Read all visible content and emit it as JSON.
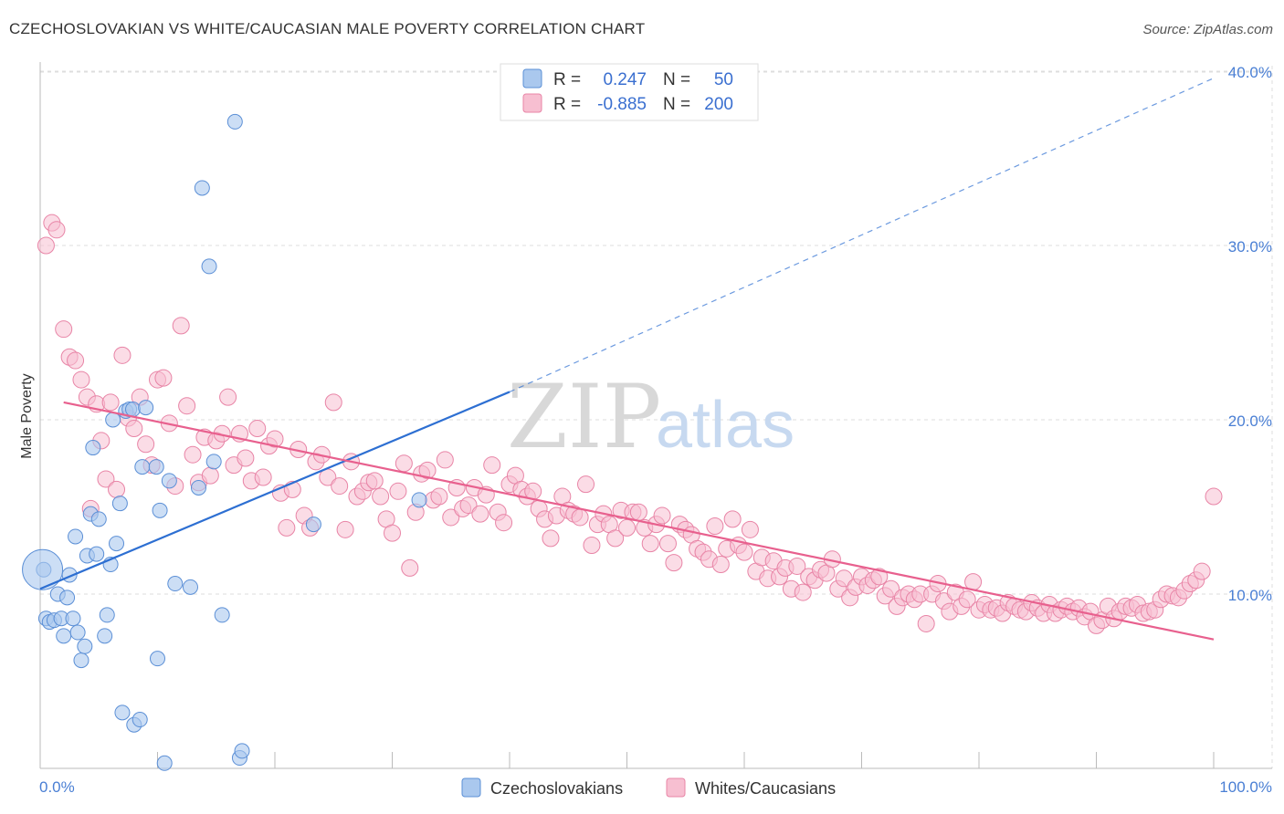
{
  "title": "CZECHOSLOVAKIAN VS WHITE/CAUCASIAN MALE POVERTY CORRELATION CHART",
  "source": "Source: ZipAtlas.com",
  "watermark": {
    "zip": "ZIP",
    "atlas": "atlas"
  },
  "colors": {
    "blue_fill": "#aac8ee",
    "blue_stroke": "#5b8fd6",
    "blue_line": "#2d6fd2",
    "pink_fill": "#f7bfd1",
    "pink_stroke": "#e884a6",
    "pink_line": "#e8608e",
    "grid": "#dddddd",
    "tick_text": "#4a7fd4"
  },
  "legend": {
    "rows": [
      {
        "r_label": "R =",
        "r_value": "0.247",
        "n_label": "N =",
        "n_value": "50"
      },
      {
        "r_label": "R =",
        "r_value": "-0.885",
        "n_label": "N =",
        "n_value": "200"
      }
    ]
  },
  "chart_data": {
    "type": "scatter",
    "xlabel": "",
    "ylabel": "Male Poverty",
    "xlim": [
      0,
      100
    ],
    "ylim": [
      0,
      40
    ],
    "x_ticks": [
      "0.0%",
      "100.0%"
    ],
    "y_ticks": [
      "10.0%",
      "20.0%",
      "30.0%",
      "40.0%"
    ],
    "y_tick_values": [
      10,
      20,
      30,
      40
    ],
    "grid": true,
    "series": [
      {
        "name": "Czechoslovakians",
        "color": "#aac8ee",
        "trend": {
          "x0": 0,
          "y0": 10.3,
          "x1": 40,
          "y1": 21.6,
          "extend_x": 100,
          "extend_y": 39.6
        },
        "points": [
          [
            0.3,
            11.4
          ],
          [
            0.5,
            8.6
          ],
          [
            0.8,
            8.4
          ],
          [
            1.2,
            8.5
          ],
          [
            1.5,
            10.0
          ],
          [
            1.8,
            8.6
          ],
          [
            2.0,
            7.6
          ],
          [
            2.3,
            9.8
          ],
          [
            2.5,
            11.1
          ],
          [
            2.8,
            8.6
          ],
          [
            3.0,
            13.3
          ],
          [
            3.2,
            7.8
          ],
          [
            3.5,
            6.2
          ],
          [
            3.8,
            7.0
          ],
          [
            4.0,
            12.2
          ],
          [
            4.3,
            14.6
          ],
          [
            4.5,
            18.4
          ],
          [
            4.8,
            12.3
          ],
          [
            5.0,
            14.3
          ],
          [
            5.5,
            7.6
          ],
          [
            5.7,
            8.8
          ],
          [
            6.0,
            11.7
          ],
          [
            6.2,
            20.0
          ],
          [
            6.5,
            12.9
          ],
          [
            6.8,
            15.2
          ],
          [
            7.0,
            3.2
          ],
          [
            7.3,
            20.5
          ],
          [
            7.6,
            20.6
          ],
          [
            7.9,
            20.6
          ],
          [
            8.0,
            2.5
          ],
          [
            8.5,
            2.8
          ],
          [
            8.7,
            17.3
          ],
          [
            9.0,
            20.7
          ],
          [
            9.9,
            17.3
          ],
          [
            10.0,
            6.3
          ],
          [
            10.2,
            14.8
          ],
          [
            10.6,
            0.3
          ],
          [
            11.0,
            16.5
          ],
          [
            11.5,
            10.6
          ],
          [
            12.8,
            10.4
          ],
          [
            13.5,
            16.1
          ],
          [
            13.8,
            33.3
          ],
          [
            14.4,
            28.8
          ],
          [
            14.8,
            17.6
          ],
          [
            15.5,
            8.8
          ],
          [
            16.6,
            37.1
          ],
          [
            17.0,
            0.6
          ],
          [
            17.2,
            1.0
          ],
          [
            23.3,
            14.0
          ],
          [
            32.3,
            15.4
          ]
        ],
        "big_point": [
          0.2,
          11.4
        ]
      },
      {
        "name": "Whites/Caucasians",
        "color": "#f7bfd1",
        "trend": {
          "x0": 2,
          "y0": 21.0,
          "x1": 100,
          "y1": 7.4
        },
        "points": [
          [
            0.5,
            30.0
          ],
          [
            1.0,
            31.3
          ],
          [
            1.4,
            30.9
          ],
          [
            2.0,
            25.2
          ],
          [
            2.5,
            23.6
          ],
          [
            3.0,
            23.4
          ],
          [
            3.5,
            22.3
          ],
          [
            4.0,
            21.3
          ],
          [
            4.3,
            14.9
          ],
          [
            4.8,
            20.9
          ],
          [
            5.2,
            18.8
          ],
          [
            5.6,
            16.6
          ],
          [
            6.0,
            21.0
          ],
          [
            6.5,
            16.0
          ],
          [
            7.0,
            23.7
          ],
          [
            7.5,
            20.1
          ],
          [
            8.0,
            19.5
          ],
          [
            8.5,
            21.3
          ],
          [
            9.0,
            18.6
          ],
          [
            9.5,
            17.4
          ],
          [
            10.0,
            22.3
          ],
          [
            10.5,
            22.4
          ],
          [
            11.0,
            19.8
          ],
          [
            11.5,
            16.2
          ],
          [
            12.0,
            25.4
          ],
          [
            12.5,
            20.8
          ],
          [
            13.0,
            18.0
          ],
          [
            13.5,
            16.4
          ],
          [
            14.0,
            19.0
          ],
          [
            14.5,
            16.8
          ],
          [
            15.0,
            18.8
          ],
          [
            15.5,
            19.2
          ],
          [
            16.0,
            21.3
          ],
          [
            16.5,
            17.4
          ],
          [
            17.0,
            19.2
          ],
          [
            17.5,
            17.8
          ],
          [
            18.0,
            16.5
          ],
          [
            18.5,
            19.5
          ],
          [
            19.0,
            16.7
          ],
          [
            19.5,
            18.5
          ],
          [
            20.0,
            18.9
          ],
          [
            20.5,
            15.8
          ],
          [
            21.0,
            13.8
          ],
          [
            21.5,
            16.0
          ],
          [
            22.0,
            18.3
          ],
          [
            22.5,
            14.5
          ],
          [
            23.0,
            13.8
          ],
          [
            23.5,
            17.6
          ],
          [
            24.0,
            18.0
          ],
          [
            24.5,
            16.7
          ],
          [
            25.0,
            21.0
          ],
          [
            25.5,
            16.2
          ],
          [
            26.0,
            13.7
          ],
          [
            26.5,
            17.6
          ],
          [
            27.0,
            15.6
          ],
          [
            27.5,
            15.9
          ],
          [
            28.0,
            16.4
          ],
          [
            28.5,
            16.5
          ],
          [
            29.0,
            15.6
          ],
          [
            29.5,
            14.3
          ],
          [
            30.0,
            13.5
          ],
          [
            30.5,
            15.9
          ],
          [
            31.0,
            17.5
          ],
          [
            31.5,
            11.5
          ],
          [
            32.0,
            14.7
          ],
          [
            32.5,
            16.9
          ],
          [
            33.0,
            17.1
          ],
          [
            33.5,
            15.4
          ],
          [
            34.0,
            15.6
          ],
          [
            34.5,
            17.7
          ],
          [
            35.0,
            14.4
          ],
          [
            35.5,
            16.1
          ],
          [
            36.0,
            14.9
          ],
          [
            36.5,
            15.1
          ],
          [
            37.0,
            16.1
          ],
          [
            37.5,
            14.6
          ],
          [
            38.0,
            15.7
          ],
          [
            38.5,
            17.4
          ],
          [
            39.0,
            14.7
          ],
          [
            39.5,
            14.1
          ],
          [
            40.0,
            16.3
          ],
          [
            40.5,
            16.8
          ],
          [
            41.0,
            16.0
          ],
          [
            41.5,
            15.6
          ],
          [
            42.0,
            15.9
          ],
          [
            42.5,
            14.9
          ],
          [
            43.0,
            14.3
          ],
          [
            43.5,
            13.2
          ],
          [
            44.0,
            14.5
          ],
          [
            44.5,
            15.6
          ],
          [
            45.0,
            14.8
          ],
          [
            45.5,
            14.6
          ],
          [
            46.0,
            14.4
          ],
          [
            46.5,
            16.3
          ],
          [
            47.0,
            12.8
          ],
          [
            47.5,
            14.0
          ],
          [
            48.0,
            14.6
          ],
          [
            48.5,
            14.0
          ],
          [
            49.0,
            13.2
          ],
          [
            49.5,
            14.8
          ],
          [
            50.0,
            13.8
          ],
          [
            50.5,
            14.7
          ],
          [
            51.0,
            14.7
          ],
          [
            51.5,
            13.8
          ],
          [
            52.0,
            12.9
          ],
          [
            52.5,
            14.0
          ],
          [
            53.0,
            14.5
          ],
          [
            53.5,
            12.9
          ],
          [
            54.0,
            11.8
          ],
          [
            54.5,
            14.0
          ],
          [
            55.0,
            13.7
          ],
          [
            55.5,
            13.4
          ],
          [
            56.0,
            12.6
          ],
          [
            56.5,
            12.4
          ],
          [
            57.0,
            12.0
          ],
          [
            57.5,
            13.9
          ],
          [
            58.0,
            11.7
          ],
          [
            58.5,
            12.6
          ],
          [
            59.0,
            14.3
          ],
          [
            59.5,
            12.8
          ],
          [
            60.0,
            12.4
          ],
          [
            60.5,
            13.7
          ],
          [
            61.0,
            11.3
          ],
          [
            61.5,
            12.1
          ],
          [
            62.0,
            10.9
          ],
          [
            62.5,
            11.9
          ],
          [
            63.0,
            11.0
          ],
          [
            63.5,
            11.5
          ],
          [
            64.0,
            10.3
          ],
          [
            64.5,
            11.6
          ],
          [
            65.0,
            10.1
          ],
          [
            65.5,
            11.0
          ],
          [
            66.0,
            10.8
          ],
          [
            66.5,
            11.4
          ],
          [
            67.0,
            11.2
          ],
          [
            67.5,
            12.0
          ],
          [
            68.0,
            10.3
          ],
          [
            68.5,
            10.9
          ],
          [
            69.0,
            9.8
          ],
          [
            69.5,
            10.4
          ],
          [
            70.0,
            11.0
          ],
          [
            70.5,
            10.5
          ],
          [
            71.0,
            10.8
          ],
          [
            71.5,
            11.0
          ],
          [
            72.0,
            9.9
          ],
          [
            72.5,
            10.3
          ],
          [
            73.0,
            9.3
          ],
          [
            73.5,
            9.8
          ],
          [
            74.0,
            10.0
          ],
          [
            74.5,
            9.7
          ],
          [
            75.0,
            10.0
          ],
          [
            75.5,
            8.3
          ],
          [
            76.0,
            10.0
          ],
          [
            76.5,
            10.6
          ],
          [
            77.0,
            9.6
          ],
          [
            77.5,
            9.0
          ],
          [
            78.0,
            10.1
          ],
          [
            78.5,
            9.3
          ],
          [
            79.0,
            9.7
          ],
          [
            79.5,
            10.7
          ],
          [
            80.0,
            9.1
          ],
          [
            80.5,
            9.4
          ],
          [
            81.0,
            9.1
          ],
          [
            81.5,
            9.2
          ],
          [
            82.0,
            8.9
          ],
          [
            82.5,
            9.5
          ],
          [
            83.0,
            9.3
          ],
          [
            83.5,
            9.1
          ],
          [
            84.0,
            9.0
          ],
          [
            84.5,
            9.5
          ],
          [
            85.0,
            9.2
          ],
          [
            85.5,
            8.9
          ],
          [
            86.0,
            9.4
          ],
          [
            86.5,
            8.9
          ],
          [
            87.0,
            9.1
          ],
          [
            87.5,
            9.3
          ],
          [
            88.0,
            9.0
          ],
          [
            88.5,
            9.2
          ],
          [
            89.0,
            8.7
          ],
          [
            89.5,
            9.0
          ],
          [
            90.0,
            8.2
          ],
          [
            90.5,
            8.5
          ],
          [
            91.0,
            9.3
          ],
          [
            91.5,
            8.6
          ],
          [
            92.0,
            9.0
          ],
          [
            92.5,
            9.3
          ],
          [
            93.0,
            9.2
          ],
          [
            93.5,
            9.4
          ],
          [
            94.0,
            8.9
          ],
          [
            94.5,
            9.0
          ],
          [
            95.0,
            9.1
          ],
          [
            95.5,
            9.7
          ],
          [
            96.0,
            10.0
          ],
          [
            96.5,
            9.9
          ],
          [
            97.0,
            9.8
          ],
          [
            97.5,
            10.2
          ],
          [
            98.0,
            10.6
          ],
          [
            98.5,
            10.8
          ],
          [
            99.0,
            11.3
          ],
          [
            100.0,
            15.6
          ]
        ]
      }
    ]
  }
}
